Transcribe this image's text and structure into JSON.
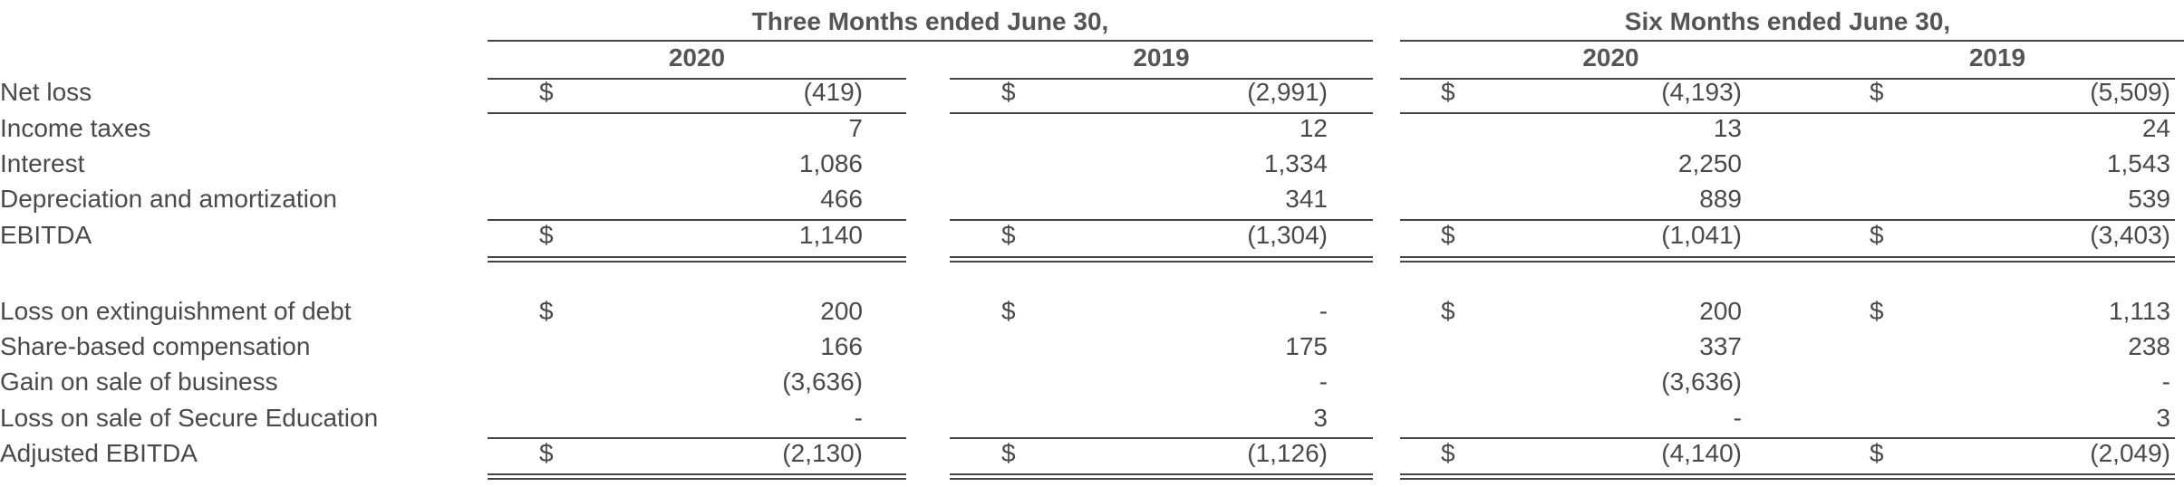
{
  "headers": {
    "group1": "Three Months ended June 30,",
    "group2": "Six Months ended June 30,",
    "years": [
      "2020",
      "2019",
      "2020",
      "2019"
    ]
  },
  "currency_symbol": "$",
  "rows": [
    {
      "label": "Net loss",
      "values": [
        "(419)",
        "(2,991)",
        "(4,193)",
        "(5,509)"
      ],
      "dollar": true
    },
    {
      "label": "Income taxes",
      "values": [
        "7",
        "12",
        "13",
        "24"
      ],
      "dollar": false
    },
    {
      "label": "Interest",
      "values": [
        "1,086",
        "1,334",
        "2,250",
        "1,543"
      ],
      "dollar": false
    },
    {
      "label": "Depreciation and amortization",
      "values": [
        "466",
        "341",
        "889",
        "539"
      ],
      "dollar": false
    },
    {
      "label": "EBITDA",
      "values": [
        "1,140",
        "(1,304)",
        "(1,041)",
        "(3,403)"
      ],
      "dollar": true
    },
    {
      "label": "Loss on extinguishment of debt",
      "values": [
        "200",
        "-",
        "200",
        "1,113"
      ],
      "dollar": true
    },
    {
      "label": "Share-based compensation",
      "values": [
        "166",
        "175",
        "337",
        "238"
      ],
      "dollar": false
    },
    {
      "label": "Gain on sale of business",
      "values": [
        "(3,636)",
        "-",
        "(3,636)",
        "-"
      ],
      "dollar": false
    },
    {
      "label": "Loss on sale of Secure Education",
      "values": [
        "-",
        "3",
        "-",
        "3"
      ],
      "dollar": false
    },
    {
      "label": "Adjusted EBITDA",
      "values": [
        "(2,130)",
        "(1,126)",
        "(4,140)",
        "(2,049)"
      ],
      "dollar": true
    }
  ]
}
